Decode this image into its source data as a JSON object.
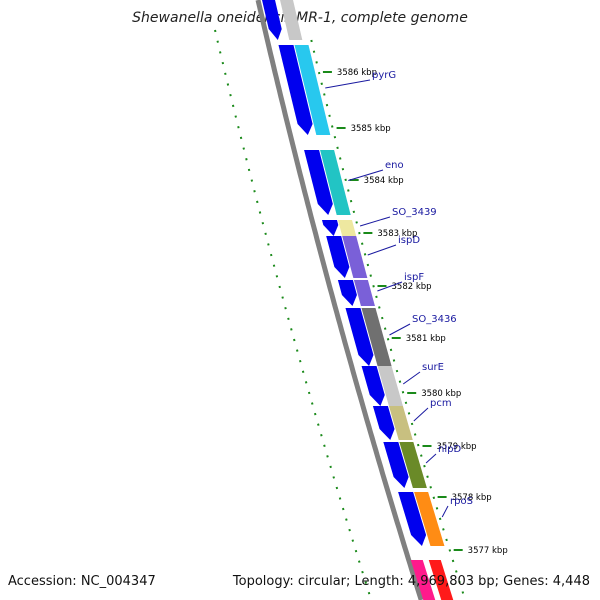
{
  "title": "Shewanella oneidensis MR-1, complete genome",
  "accession_label": "Accession: NC_004347",
  "genome_stats": "Topology: circular; Length: 4,969,803 bp; Genes: 4,448",
  "kbp_ticks": [
    "3586 kbp",
    "3585 kbp",
    "3584 kbp",
    "3583 kbp",
    "3582 kbp",
    "3581 kbp",
    "3580 kbp",
    "3579 kbp",
    "3578 kbp",
    "3577 kbp"
  ],
  "genes": [
    {
      "name": "pyrG",
      "color": "#28c8ee"
    },
    {
      "name": "eno",
      "color": "#22c4c4"
    },
    {
      "name": "SO_3439",
      "color": "#eee8a0"
    },
    {
      "name": "ispD",
      "color": "#7a60d8"
    },
    {
      "name": "ispF",
      "color": "#7a60d8"
    },
    {
      "name": "SO_3436",
      "color": "#707070"
    },
    {
      "name": "surE",
      "color": "#c8c8c8"
    },
    {
      "name": "pcm",
      "color": "#c8c080"
    },
    {
      "name": "nlpD",
      "color": "#6a8a28"
    },
    {
      "name": "rpoS",
      "color": "#ff8c14"
    }
  ],
  "colors": {
    "cds_forward": "#0000ee",
    "gene_label": "#1a1aa0",
    "backbone": "#808080",
    "dotted_track": "#1a8a1a"
  }
}
